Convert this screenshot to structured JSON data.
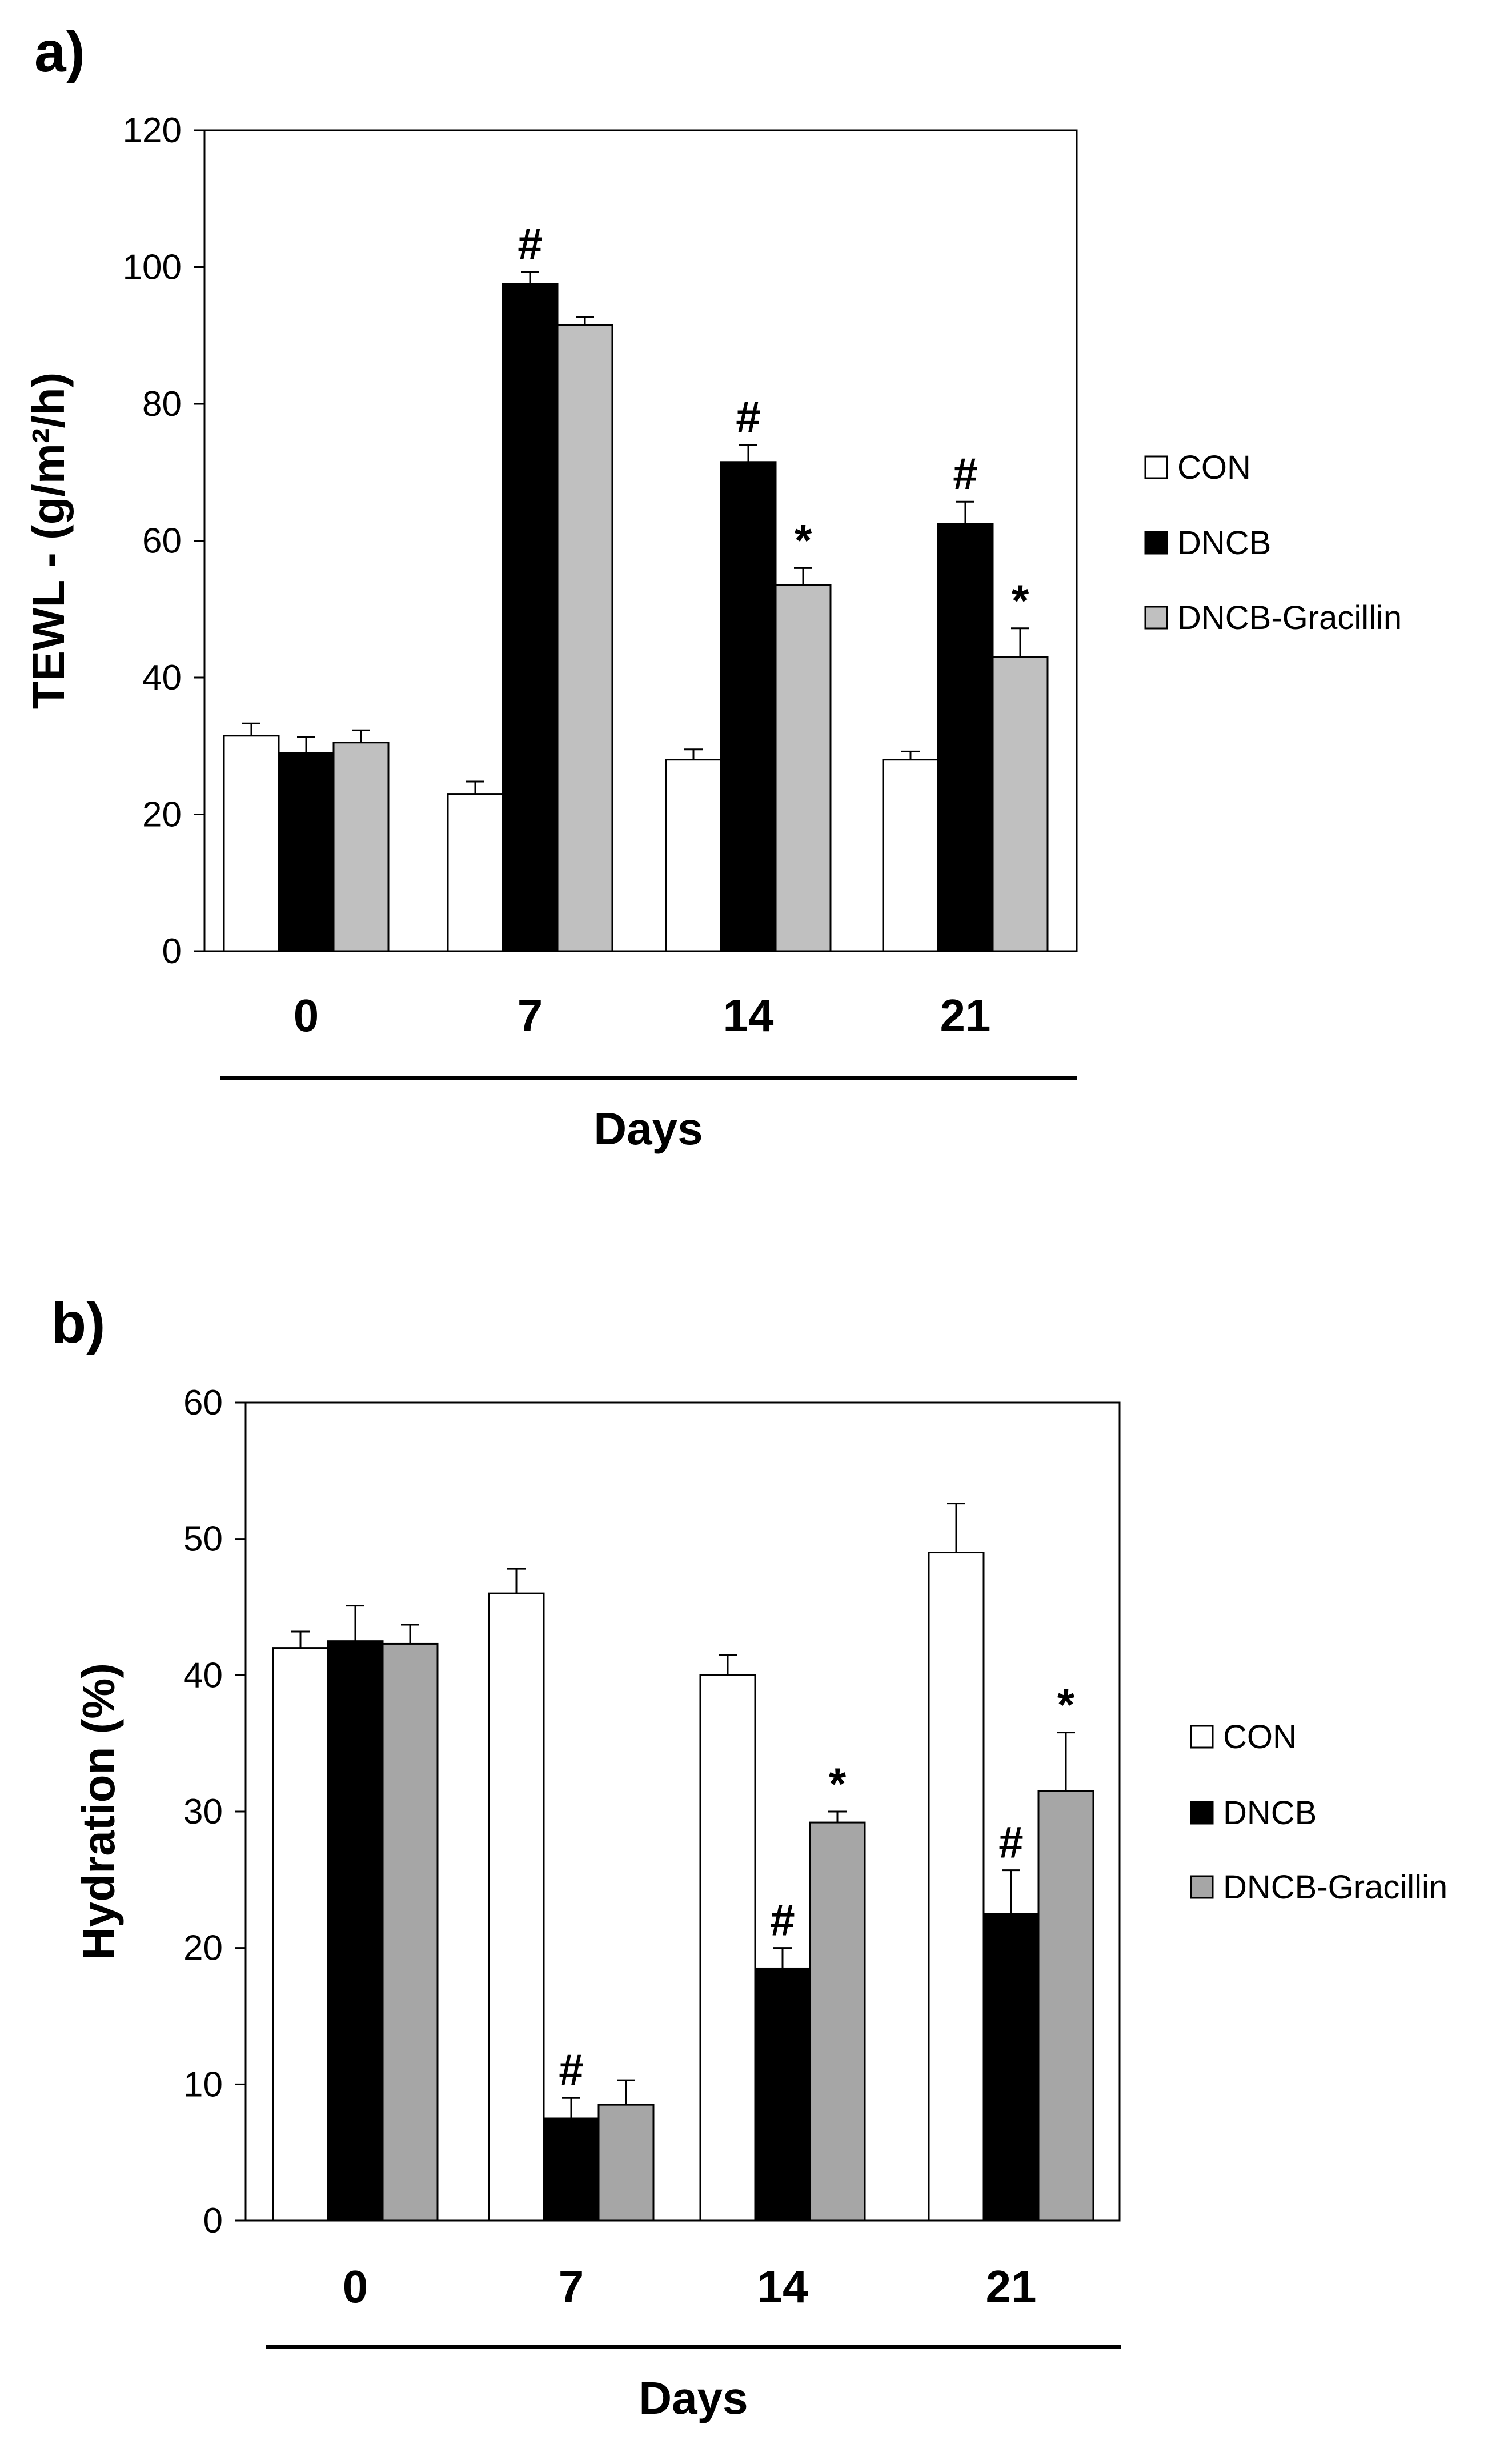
{
  "chart_data": [
    {
      "type": "bar",
      "panel_label": "a)",
      "title": "",
      "xlabel": "Days",
      "ylabel": "TEWL - (g/m²/h)",
      "ylim": [
        0,
        120
      ],
      "yticks": [
        0,
        20,
        40,
        60,
        80,
        100,
        120
      ],
      "categories": [
        "0",
        "7",
        "14",
        "21"
      ],
      "series": [
        {
          "name": "CON",
          "color": "#ffffff",
          "values": [
            31.5,
            23,
            28,
            28
          ],
          "errors": [
            1.8,
            1.8,
            1.5,
            1.2
          ],
          "marks": [
            "",
            "",
            "",
            ""
          ]
        },
        {
          "name": "DNCB",
          "color": "#000000",
          "values": [
            29,
            97.5,
            71.5,
            62.5
          ],
          "errors": [
            2.3,
            1.8,
            2.5,
            3.2
          ],
          "marks": [
            "",
            "#",
            "#",
            "#"
          ]
        },
        {
          "name": "DNCB-Gracillin",
          "color": "#c0c0c0",
          "values": [
            30.5,
            91.5,
            53.5,
            43
          ],
          "errors": [
            1.8,
            1.2,
            2.5,
            4.2
          ],
          "marks": [
            "",
            "",
            "*",
            "*"
          ]
        }
      ],
      "legend": [
        "CON",
        "DNCB",
        "DNCB-Gracillin"
      ],
      "legend_position": "right",
      "grid": false
    },
    {
      "type": "bar",
      "panel_label": "b)",
      "title": "",
      "xlabel": "Days",
      "ylabel": "Hydration (%)",
      "ylim": [
        0,
        60
      ],
      "yticks": [
        0,
        10,
        20,
        30,
        40,
        50,
        60
      ],
      "categories": [
        "0",
        "7",
        "14",
        "21"
      ],
      "series": [
        {
          "name": "CON",
          "color": "#ffffff",
          "values": [
            42,
            46,
            40,
            49
          ],
          "errors": [
            1.2,
            1.8,
            1.5,
            3.6
          ],
          "marks": [
            "",
            "",
            "",
            ""
          ]
        },
        {
          "name": "DNCB",
          "color": "#000000",
          "values": [
            42.5,
            7.5,
            18.5,
            22.5
          ],
          "errors": [
            2.6,
            1.5,
            1.5,
            3.2
          ],
          "marks": [
            "",
            "#",
            "#",
            "#"
          ]
        },
        {
          "name": "DNCB-Gracillin",
          "color": "#a6a6a6",
          "values": [
            42.3,
            8.5,
            29.2,
            31.5
          ],
          "errors": [
            1.4,
            1.8,
            0.8,
            4.3
          ],
          "marks": [
            "",
            "",
            "*",
            "*"
          ]
        }
      ],
      "legend": [
        "CON",
        "DNCB",
        "DNCB-Gracillin"
      ],
      "legend_position": "right",
      "grid": false
    }
  ]
}
